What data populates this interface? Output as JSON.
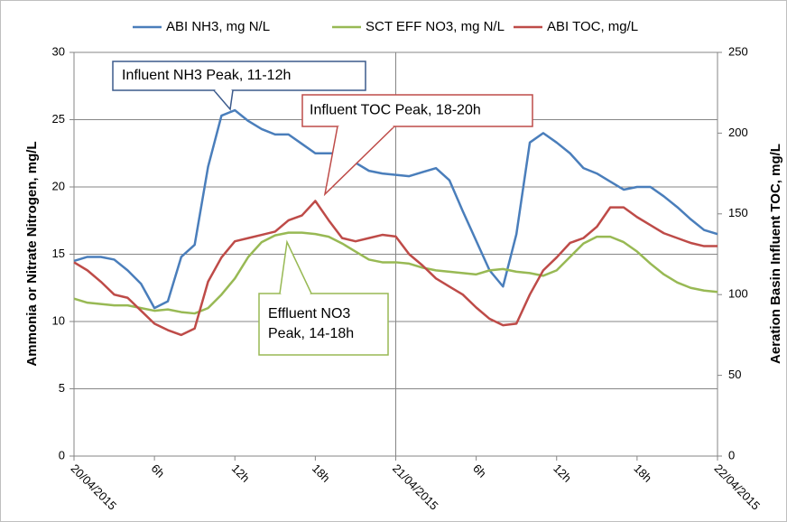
{
  "chart_data": {
    "type": "line",
    "x": [
      0,
      1,
      2,
      3,
      4,
      5,
      6,
      7,
      8,
      9,
      10,
      11,
      12,
      13,
      14,
      15,
      16,
      17,
      18,
      19,
      20,
      21,
      22,
      23,
      24,
      25,
      26,
      27,
      28,
      29,
      30,
      31,
      32,
      33,
      34,
      35,
      36,
      37,
      38,
      39,
      40,
      41,
      42,
      43,
      44,
      45,
      46,
      47,
      48
    ],
    "xlim": [
      0,
      48
    ],
    "xticks": [
      {
        "value": 0,
        "label": "20/04/2015"
      },
      {
        "value": 6,
        "label": "6h"
      },
      {
        "value": 12,
        "label": "12h"
      },
      {
        "value": 18,
        "label": "18h"
      },
      {
        "value": 24,
        "label": "21/04/2015"
      },
      {
        "value": 30,
        "label": "6h"
      },
      {
        "value": 36,
        "label": "12h"
      },
      {
        "value": 42,
        "label": "18h"
      },
      {
        "value": 48,
        "label": "22/04/2015"
      }
    ],
    "xgrid_step": 24,
    "ylabel": "Ammonia or Nitrate Nitrogen, mg/L",
    "y2label": "Aeration Basin Influent TOC, mg/L",
    "ylim": [
      0,
      30
    ],
    "yticks": [
      0,
      5,
      10,
      15,
      20,
      25,
      30
    ],
    "y2lim": [
      0,
      250
    ],
    "y2ticks": [
      0,
      50,
      100,
      150,
      200,
      250
    ],
    "grid": true,
    "legend": "top",
    "series": [
      {
        "name": "ABI NH3, mg N/L",
        "color": "#4a7ebb",
        "values": [
          14.5,
          14.8,
          14.8,
          14.6,
          13.8,
          12.8,
          11.0,
          11.5,
          14.8,
          15.7,
          21.5,
          25.3,
          25.7,
          24.9,
          24.3,
          23.9,
          23.9,
          23.2,
          22.5,
          22.5,
          22.5,
          21.8,
          21.2,
          21.0,
          20.9,
          20.8,
          21.1,
          21.4,
          20.5,
          18.2,
          16.0,
          13.8,
          12.6,
          16.5,
          23.3,
          24.0,
          23.3,
          22.5,
          21.4,
          21.0,
          20.4,
          19.8,
          20.0,
          20.0,
          19.3,
          18.5,
          17.6,
          16.8,
          16.5
        ]
      },
      {
        "name": "SCT EFF NO3, mg N/L",
        "color": "#98b954",
        "values": [
          11.7,
          11.4,
          11.3,
          11.2,
          11.2,
          11.0,
          10.8,
          10.9,
          10.7,
          10.6,
          11.0,
          12.0,
          13.2,
          14.8,
          15.9,
          16.4,
          16.6,
          16.6,
          16.5,
          16.3,
          15.8,
          15.2,
          14.6,
          14.4,
          14.4,
          14.3,
          14.0,
          13.8,
          13.7,
          13.6,
          13.5,
          13.8,
          13.9,
          13.7,
          13.6,
          13.4,
          13.8,
          14.8,
          15.8,
          16.3,
          16.3,
          15.9,
          15.2,
          14.3,
          13.5,
          12.9,
          12.5,
          12.3,
          12.2
        ]
      },
      {
        "name": "ABI TOC, mg/L",
        "color": "#be4b48",
        "axis": "y2",
        "values": [
          120,
          115,
          108,
          100,
          98,
          90,
          82,
          78,
          75,
          79,
          108,
          123,
          133,
          135,
          137,
          139,
          146,
          149,
          158,
          146,
          135,
          133,
          135,
          137,
          136,
          125,
          118,
          110,
          105,
          100,
          92,
          85,
          81,
          82,
          100,
          115,
          123,
          132,
          135,
          142,
          154,
          154,
          148,
          143,
          138,
          135,
          132,
          130,
          130
        ]
      }
    ],
    "annotations": [
      {
        "text": [
          "Influent NH3 Peak, 11-12h"
        ],
        "color": "#3b5a8c"
      },
      {
        "text": [
          "Influent TOC Peak, 18-20h"
        ],
        "color": "#be4b48"
      },
      {
        "text": [
          "Effluent NO3",
          "Peak, 14-18h"
        ],
        "color": "#98b954"
      }
    ]
  }
}
